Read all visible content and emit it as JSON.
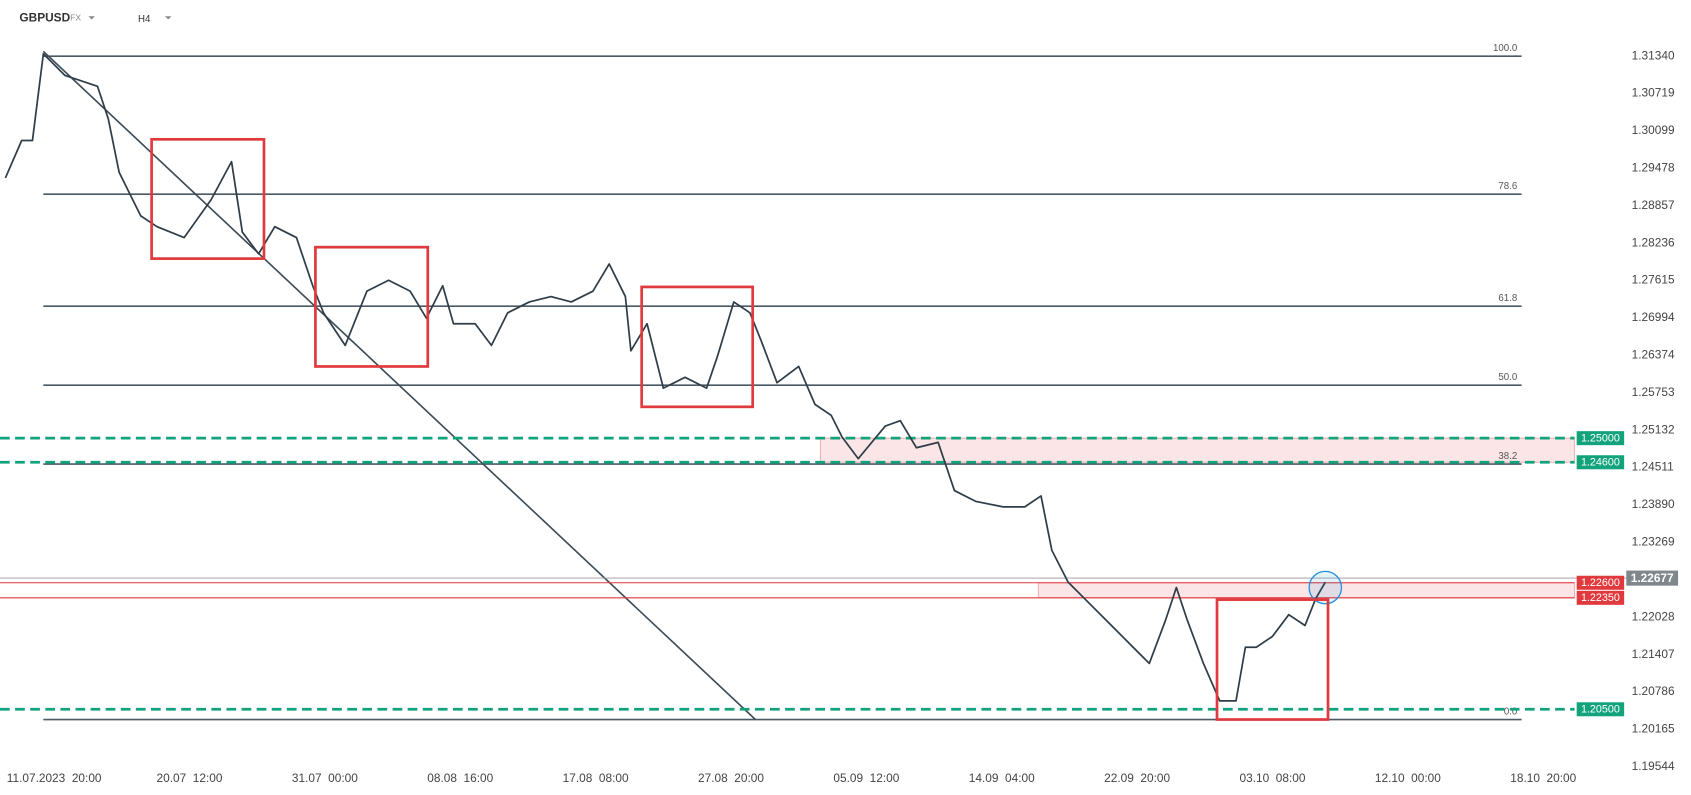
{
  "header": {
    "symbol": "GBPUSD",
    "market": "FX",
    "timeframe": "H4"
  },
  "chart_data": {
    "type": "line",
    "series": [
      {
        "color": "#2f3d48",
        "x": [
          -0.36,
          -0.24,
          -0.16,
          -0.08,
          0.08,
          0.32,
          0.4,
          0.48,
          0.64,
          0.76,
          0.96,
          1.16,
          1.31,
          1.39,
          1.51,
          1.63,
          1.79,
          1.91,
          1.99,
          2.15,
          2.31,
          2.47,
          2.63,
          2.75,
          2.87,
          2.95,
          3.11,
          3.23,
          3.35,
          3.51,
          3.67,
          3.82,
          3.98,
          4.1,
          4.22,
          4.26,
          4.38,
          4.5,
          4.66,
          4.82,
          4.9,
          5.02,
          5.14,
          5.22,
          5.34,
          5.5,
          5.62,
          5.74,
          5.82,
          5.94,
          6.14,
          6.25,
          6.37,
          6.53,
          6.65,
          6.81,
          7.01,
          7.17,
          7.29,
          7.37,
          7.49,
          7.65,
          7.81,
          7.97,
          8.09,
          8.21,
          8.29,
          8.37,
          8.49,
          8.61,
          8.73,
          8.8,
          8.88,
          9.0,
          9.12,
          9.24,
          9.32,
          9.39
        ],
        "values": [
          1.2932,
          1.2994,
          1.2994,
          1.3138,
          1.3102,
          1.3084,
          1.303,
          1.2941,
          1.2869,
          1.2851,
          1.2833,
          1.2896,
          1.2959,
          1.2842,
          1.2806,
          1.2851,
          1.2833,
          1.2753,
          1.2708,
          1.2654,
          1.2744,
          1.2762,
          1.2744,
          1.2699,
          1.2753,
          1.269,
          1.269,
          1.2654,
          1.2708,
          1.2726,
          1.2735,
          1.2726,
          1.2744,
          1.2789,
          1.2735,
          1.2645,
          1.269,
          1.2583,
          1.2601,
          1.2583,
          1.2636,
          1.2726,
          1.2708,
          1.2663,
          1.2592,
          1.2619,
          1.2556,
          1.2538,
          1.2502,
          1.2466,
          1.252,
          1.2529,
          1.2484,
          1.2493,
          1.2413,
          1.2395,
          1.2386,
          1.2386,
          1.2404,
          1.2314,
          1.2261,
          1.2225,
          1.2189,
          1.2153,
          1.2126,
          1.2198,
          1.2252,
          1.2198,
          1.2126,
          1.2064,
          1.2064,
          1.2153,
          1.2153,
          1.2171,
          1.2207,
          1.2189,
          1.2234,
          1.2261
        ]
      }
    ],
    "xlim": [
      -0.4,
      11.47
    ],
    "ylim": [
      1.19204,
      1.32271
    ],
    "xticks": [
      {
        "value": 0,
        "label": "11.07.2023  20:00"
      },
      {
        "value": 1,
        "label": "20.07  12:00"
      },
      {
        "value": 2,
        "label": "31.07  00:00"
      },
      {
        "value": 3,
        "label": "08.08  16:00"
      },
      {
        "value": 4,
        "label": "17.08  08:00"
      },
      {
        "value": 5,
        "label": "27.08  20:00"
      },
      {
        "value": 6,
        "label": "05.09  12:00"
      },
      {
        "value": 7,
        "label": "14.09  04:00"
      },
      {
        "value": 8,
        "label": "22.09  20:00"
      },
      {
        "value": 9,
        "label": "03.10  08:00"
      },
      {
        "value": 10,
        "label": "12.10  00:00"
      },
      {
        "value": 11,
        "label": "18.10  20:00"
      }
    ],
    "yticks": [
      {
        "value": 1.3134,
        "label": "1.31340"
      },
      {
        "value": 1.30719,
        "label": "1.30719"
      },
      {
        "value": 1.30099,
        "label": "1.30099"
      },
      {
        "value": 1.29478,
        "label": "1.29478"
      },
      {
        "value": 1.28857,
        "label": "1.28857"
      },
      {
        "value": 1.28236,
        "label": "1.28236"
      },
      {
        "value": 1.27615,
        "label": "1.27615"
      },
      {
        "value": 1.26994,
        "label": "1.26994"
      },
      {
        "value": 1.26374,
        "label": "1.26374"
      },
      {
        "value": 1.25753,
        "label": "1.25753"
      },
      {
        "value": 1.25132,
        "label": "1.25132"
      },
      {
        "value": 1.24511,
        "label": "1.24511"
      },
      {
        "value": 1.2389,
        "label": "1.23890"
      },
      {
        "value": 1.23269,
        "label": "1.23269"
      },
      {
        "value": 1.22028,
        "label": "1.22028"
      },
      {
        "value": 1.21407,
        "label": "1.21407"
      },
      {
        "value": 1.20786,
        "label": "1.20786"
      },
      {
        "value": 1.20165,
        "label": "1.20165"
      },
      {
        "value": 1.19544,
        "label": "1.19544"
      }
    ],
    "fibonacci": {
      "x_range": [
        -0.08,
        10.84
      ],
      "color": "#4a5963",
      "levels": [
        {
          "ratio": "100.0",
          "price": 1.3134
        },
        {
          "ratio": "78.6",
          "price": 1.2905
        },
        {
          "ratio": "61.8",
          "price": 1.2719
        },
        {
          "ratio": "50.0",
          "price": 1.2588
        },
        {
          "ratio": "38.2",
          "price": 1.2457
        },
        {
          "ratio": "0.0",
          "price": 1.2033
        }
      ]
    },
    "levels": [
      {
        "value": 1.25,
        "label": "1.25000",
        "color": "#12a37d",
        "style": "dashed"
      },
      {
        "value": 1.246,
        "label": "1.24600",
        "color": "#12a37d",
        "style": "dashed"
      },
      {
        "value": 1.205,
        "label": "1.20500",
        "color": "#12a37d",
        "style": "dashed"
      },
      {
        "value": 1.226,
        "label": "1.22600",
        "color": "#e0393e",
        "style": "solid"
      },
      {
        "value": 1.2235,
        "label": "1.22350",
        "color": "#e0393e",
        "style": "solid"
      }
    ],
    "zones": [
      {
        "x_start": 5.66,
        "y": [
          1.246,
          1.25
        ]
      },
      {
        "x_start": 7.27,
        "y": [
          1.2235,
          1.226
        ]
      }
    ],
    "boxes": [
      {
        "x": [
          0.72,
          1.55
        ],
        "y": [
          1.2798,
          1.2996
        ]
      },
      {
        "x": [
          1.93,
          2.76
        ],
        "y": [
          1.2619,
          1.2817
        ]
      },
      {
        "x": [
          4.34,
          5.16
        ],
        "y": [
          1.2552,
          1.2751
        ]
      },
      {
        "x": [
          8.59,
          9.41
        ],
        "y": [
          1.2033,
          1.2232
        ]
      }
    ],
    "trendline": {
      "x": [
        -0.08,
        5.18
      ],
      "y": [
        1.3142,
        1.2033
      ]
    },
    "last_price": {
      "value": 1.22677,
      "label": "1.22677"
    }
  }
}
